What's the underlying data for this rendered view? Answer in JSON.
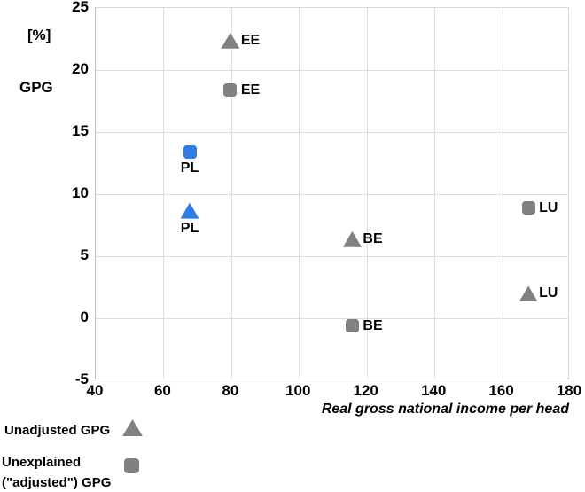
{
  "chart": {
    "y_axis_unit_label": "[%]",
    "y_axis_name": "GPG",
    "x_axis_title": "Real gross national income per head",
    "colors": {
      "gray_marker": "#818181",
      "blue_marker": "#2F7BE8",
      "gridline": "#DEDEDE",
      "axis_line": "#BFBFBF",
      "text": "#000000"
    }
  },
  "chart_data": {
    "type": "scatter",
    "title": "",
    "xlabel": "Real gross national income per head",
    "ylabel": "GPG [%]",
    "xlim": [
      40,
      180
    ],
    "ylim": [
      -5,
      25
    ],
    "x_ticks": [
      40,
      60,
      80,
      100,
      120,
      140,
      160,
      180
    ],
    "y_ticks": [
      -5,
      0,
      5,
      10,
      15,
      20,
      25
    ],
    "grid": true,
    "legend_position": "bottom-left",
    "series": [
      {
        "name": "Unadjusted GPG",
        "marker": "triangle",
        "points": [
          {
            "country": "EE",
            "x": 80,
            "y": 22.3,
            "color": "#818181",
            "label_side": "right"
          },
          {
            "country": "PL",
            "x": 68,
            "y": 8.6,
            "color": "#2F7BE8",
            "label_side": "below"
          },
          {
            "country": "BE",
            "x": 116,
            "y": 6.3,
            "color": "#818181",
            "label_side": "right"
          },
          {
            "country": "LU",
            "x": 168,
            "y": 1.9,
            "color": "#818181",
            "label_side": "right"
          }
        ]
      },
      {
        "name": "Unexplained (\"adjusted\") GPG",
        "marker": "square",
        "points": [
          {
            "country": "EE",
            "x": 80,
            "y": 18.3,
            "color": "#818181",
            "label_side": "right"
          },
          {
            "country": "PL",
            "x": 68,
            "y": 13.3,
            "color": "#2F7BE8",
            "label_side": "below"
          },
          {
            "country": "BE",
            "x": 116,
            "y": -0.7,
            "color": "#818181",
            "label_side": "right"
          },
          {
            "country": "LU",
            "x": 168,
            "y": 8.8,
            "color": "#818181",
            "label_side": "right"
          }
        ]
      }
    ]
  },
  "legend": {
    "items": [
      {
        "label": "Unadjusted GPG",
        "marker": "triangle",
        "color": "#818181"
      },
      {
        "label_line1": "Unexplained",
        "label_line2": "(\"adjusted\") GPG",
        "marker": "square",
        "color": "#818181"
      }
    ]
  }
}
